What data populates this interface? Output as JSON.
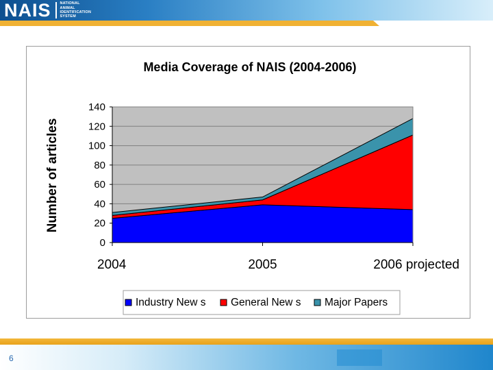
{
  "header": {
    "logo_text": "NAIS",
    "logo_subtitle": [
      "NATIONAL",
      "ANIMAL",
      "IDENTIFICATION",
      "SYSTEM"
    ]
  },
  "footer": {
    "page_number": "6"
  },
  "colors": {
    "gold": "#f0b133",
    "plot_background": "#c0c0c0",
    "industry": "#0000ff",
    "general": "#ff0000",
    "major": "#3a93ab"
  },
  "chart_data": {
    "type": "area",
    "stacked": true,
    "title": "Media Coverage of NAIS (2004-2006)",
    "xlabel": "",
    "ylabel": "Number of articles",
    "categories": [
      "2004",
      "2005",
      "2006 projected"
    ],
    "ylim": [
      0,
      140
    ],
    "yticks": [
      0,
      20,
      40,
      60,
      80,
      100,
      120,
      140
    ],
    "grid": true,
    "legend_position": "bottom",
    "series": [
      {
        "name": "Industry New s",
        "values": [
          25,
          39,
          34
        ],
        "color": "#0000ff"
      },
      {
        "name": "General New s",
        "values": [
          3,
          5,
          77
        ],
        "color": "#ff0000"
      },
      {
        "name": "Major Papers",
        "values": [
          3,
          3,
          17
        ],
        "color": "#3a93ab"
      }
    ]
  }
}
